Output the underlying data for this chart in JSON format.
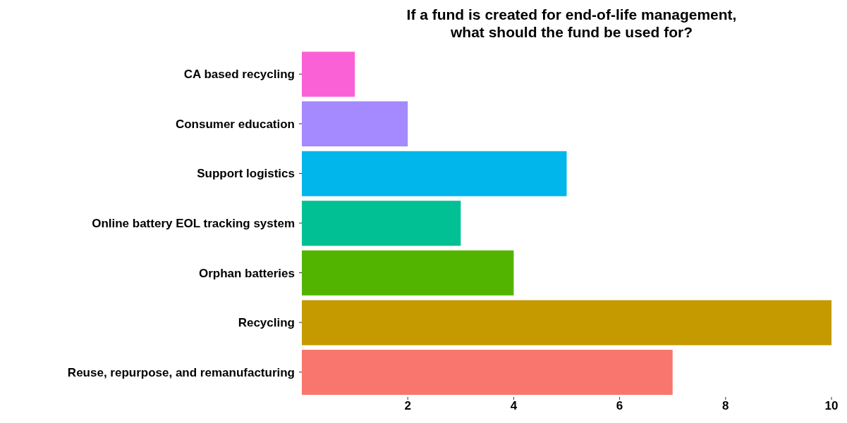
{
  "chart_data": {
    "type": "bar",
    "orientation": "horizontal",
    "title": "If a fund is created for end-of-life management,\nwhat should the fund be used for?",
    "categories": [
      "CA based recycling",
      "Consumer education",
      "Support logistics",
      "Online battery EOL tracking system",
      "Orphan batteries",
      "Recycling",
      "Reuse, repurpose, and remanufacturing"
    ],
    "values": [
      1,
      2,
      5,
      3,
      4,
      10,
      7
    ],
    "colors": [
      "#fb61d7",
      "#a58aff",
      "#00b6eb",
      "#00c094",
      "#53b400",
      "#c49a00",
      "#f8766d"
    ],
    "xlim": [
      0,
      10
    ],
    "xticks": [
      2,
      4,
      6,
      8,
      10
    ],
    "grid": false,
    "legend": false
  }
}
